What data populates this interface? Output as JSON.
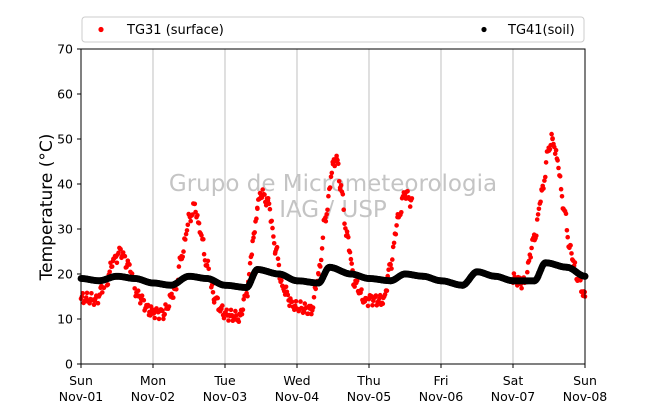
{
  "chart_data": {
    "type": "scatter",
    "title": "",
    "xlabel": "",
    "ylabel": "Temperature (°C)",
    "ylim": [
      0,
      70
    ],
    "yticks": [
      0,
      10,
      20,
      30,
      40,
      50,
      60,
      70
    ],
    "xlim": [
      "2020-11-01",
      "2020-11-08"
    ],
    "xtick_labels": [
      [
        "Sun",
        "Nov-01"
      ],
      [
        "Mon",
        "Nov-02"
      ],
      [
        "Tue",
        "Nov-03"
      ],
      [
        "Wed",
        "Nov-04"
      ],
      [
        "Thu",
        "Nov-05"
      ],
      [
        "Fri",
        "Nov-06"
      ],
      [
        "Sat",
        "Nov-07"
      ],
      [
        "Sun",
        "Nov-08"
      ]
    ],
    "grid": "vertical",
    "legend_placement": "top",
    "watermark": [
      "Grupo de Micrometeorologia",
      "IAG / USP"
    ],
    "series": [
      {
        "name": "TG31 (surface)",
        "color": "#ff0000",
        "points": [
          [
            0.0,
            14.5
          ],
          [
            0.2,
            14.3
          ],
          [
            0.35,
            18
          ],
          [
            0.45,
            23
          ],
          [
            0.55,
            25
          ],
          [
            0.65,
            22
          ],
          [
            0.8,
            15
          ],
          [
            0.95,
            12
          ],
          [
            1.0,
            11.5
          ],
          [
            1.15,
            11.5
          ],
          [
            1.3,
            16
          ],
          [
            1.4,
            24
          ],
          [
            1.5,
            32
          ],
          [
            1.58,
            35
          ],
          [
            1.65,
            30
          ],
          [
            1.75,
            22
          ],
          [
            1.85,
            15
          ],
          [
            1.95,
            12
          ],
          [
            2.0,
            11
          ],
          [
            2.2,
            10.3
          ],
          [
            2.3,
            16
          ],
          [
            2.4,
            28
          ],
          [
            2.45,
            35
          ],
          [
            2.5,
            38
          ],
          [
            2.6,
            36
          ],
          [
            2.7,
            26
          ],
          [
            2.8,
            17
          ],
          [
            2.95,
            13
          ],
          [
            3.0,
            12.5
          ],
          [
            3.2,
            12
          ],
          [
            3.3,
            20
          ],
          [
            3.4,
            33
          ],
          [
            3.5,
            44
          ],
          [
            3.55,
            46
          ],
          [
            3.6,
            40
          ],
          [
            3.7,
            28
          ],
          [
            3.8,
            18
          ],
          [
            3.95,
            14
          ],
          [
            4.0,
            14.5
          ],
          [
            4.2,
            14
          ],
          [
            4.3,
            22
          ],
          [
            4.4,
            32
          ],
          [
            4.5,
            38
          ],
          [
            4.6,
            36
          ],
          [
            6.0,
            19
          ],
          [
            6.15,
            18
          ],
          [
            6.3,
            28
          ],
          [
            6.4,
            38
          ],
          [
            6.5,
            48
          ],
          [
            6.55,
            50
          ],
          [
            6.62,
            45
          ],
          [
            6.7,
            35
          ],
          [
            6.8,
            25
          ],
          [
            6.9,
            19
          ],
          [
            7.0,
            15
          ]
        ]
      },
      {
        "name": "TG41(soil)",
        "color": "#000000",
        "points": [
          [
            0.0,
            19
          ],
          [
            0.25,
            18.5
          ],
          [
            0.5,
            19.5
          ],
          [
            0.75,
            19
          ],
          [
            1.0,
            18
          ],
          [
            1.25,
            17.5
          ],
          [
            1.5,
            19.5
          ],
          [
            1.75,
            19
          ],
          [
            2.0,
            17.5
          ],
          [
            2.3,
            17
          ],
          [
            2.45,
            21
          ],
          [
            2.75,
            20
          ],
          [
            3.0,
            18.5
          ],
          [
            3.3,
            18
          ],
          [
            3.45,
            21.5
          ],
          [
            3.75,
            20
          ],
          [
            4.0,
            19
          ],
          [
            4.3,
            18.5
          ],
          [
            4.5,
            20
          ],
          [
            4.75,
            19.5
          ],
          [
            5.0,
            18.5
          ],
          [
            5.3,
            17.5
          ],
          [
            5.5,
            20.5
          ],
          [
            5.75,
            19.5
          ],
          [
            6.0,
            18.5
          ],
          [
            6.3,
            18.5
          ],
          [
            6.45,
            22.5
          ],
          [
            6.75,
            21.5
          ],
          [
            7.0,
            19.5
          ]
        ]
      }
    ]
  }
}
